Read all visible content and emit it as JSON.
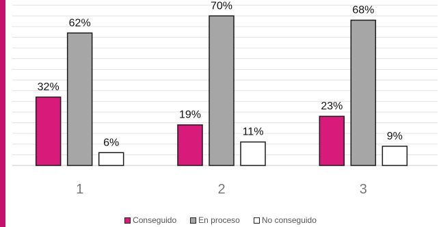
{
  "chart_data": {
    "type": "bar",
    "categories": [
      "1",
      "2",
      "3"
    ],
    "series": [
      {
        "name": "Conseguido",
        "values": [
          32,
          19,
          23
        ],
        "labels": [
          "32%",
          "19%",
          "23%"
        ],
        "color": "#d81b7a"
      },
      {
        "name": "En proceso",
        "values": [
          62,
          70,
          68
        ],
        "labels": [
          "62%",
          "70%",
          "68%"
        ],
        "color": "#a6a6a6"
      },
      {
        "name": "No conseguido",
        "values": [
          6,
          11,
          9
        ],
        "labels": [
          "6%",
          "11%",
          "9%"
        ],
        "color": "#ffffff"
      }
    ],
    "ylim": [
      0,
      80
    ],
    "grid": true,
    "legend_position": "bottom"
  },
  "accent_color": "#c2126c"
}
